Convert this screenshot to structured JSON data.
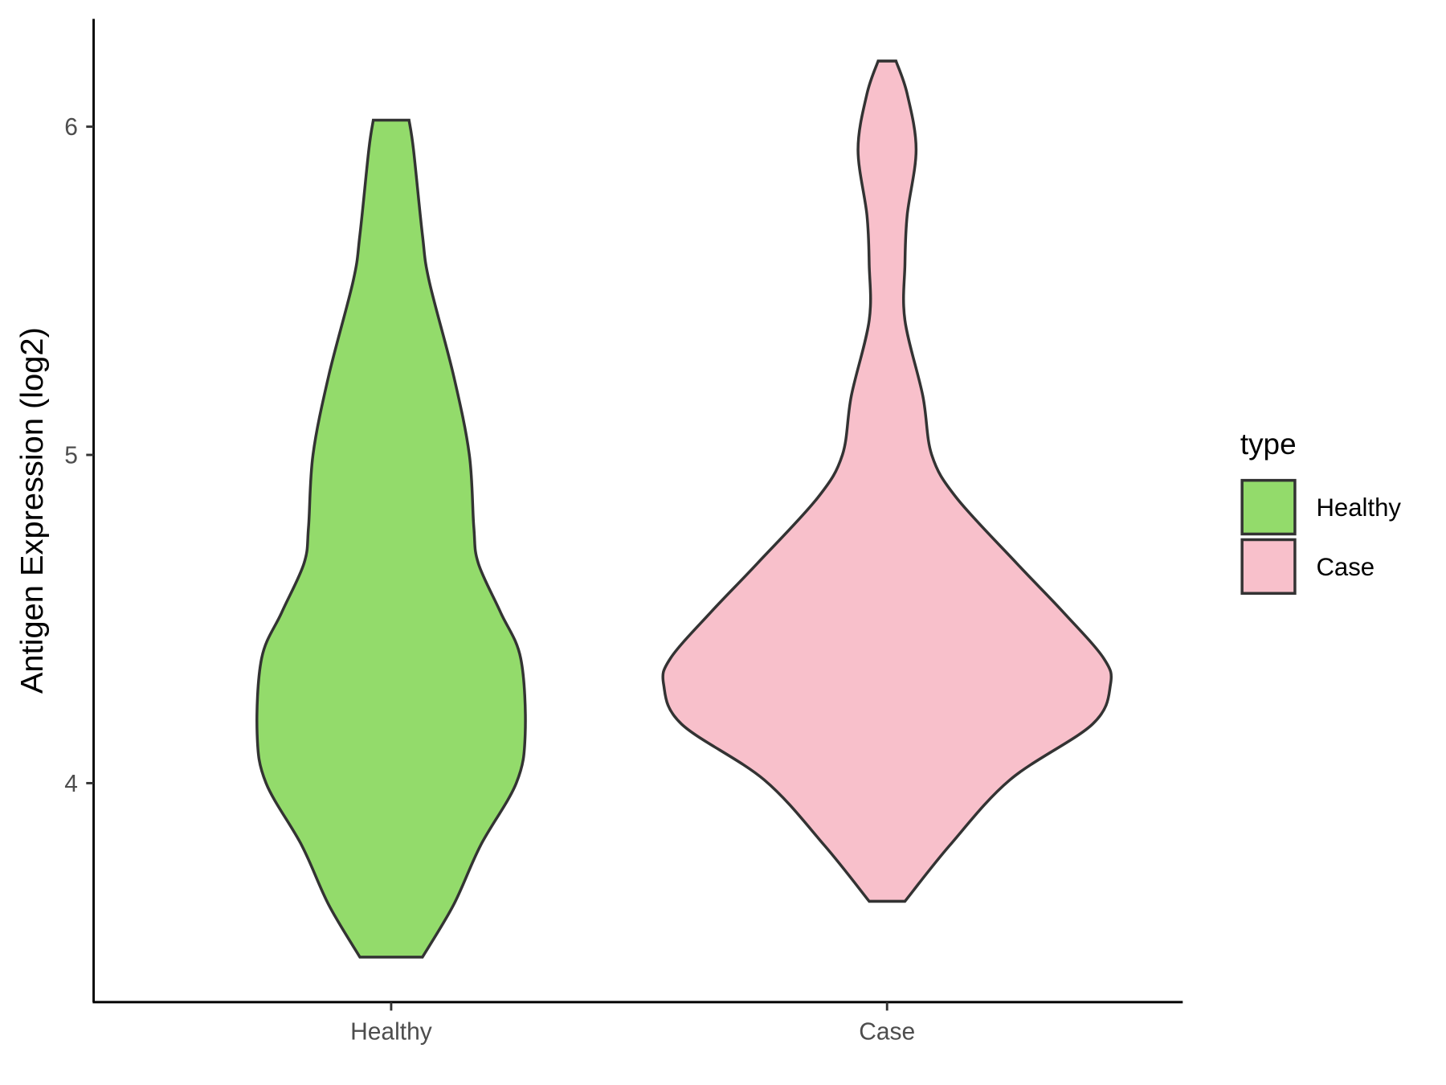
{
  "chart_data": {
    "type": "violin",
    "title": "",
    "xlabel": "",
    "ylabel": "Antigen Expression (log2)",
    "categories": [
      "Healthy",
      "Case"
    ],
    "y_ticks": [
      4,
      5,
      6
    ],
    "y_tick_labels": [
      "4",
      "5",
      "6"
    ],
    "ylim": [
      3.34,
      6.34
    ],
    "grid": false,
    "legend": {
      "title": "type",
      "placement": "right",
      "entries": [
        "Healthy",
        "Case"
      ]
    },
    "colors": {
      "Healthy": "#93DB6B",
      "Case": "#F8C0CB",
      "outline": "#333333"
    },
    "series": [
      {
        "name": "Healthy",
        "range": [
          3.47,
          6.02
        ],
        "density_profile": [
          [
            6.02,
            0.08
          ],
          [
            5.93,
            0.1
          ],
          [
            5.67,
            0.14
          ],
          [
            5.53,
            0.17
          ],
          [
            5.24,
            0.28
          ],
          [
            5.0,
            0.35
          ],
          [
            4.78,
            0.37
          ],
          [
            4.67,
            0.39
          ],
          [
            4.52,
            0.49
          ],
          [
            4.38,
            0.58
          ],
          [
            4.15,
            0.6
          ],
          [
            4.0,
            0.56
          ],
          [
            3.81,
            0.4
          ],
          [
            3.63,
            0.28
          ],
          [
            3.47,
            0.14
          ]
        ]
      },
      {
        "name": "Case",
        "range": [
          3.64,
          6.2
        ],
        "density_profile": [
          [
            6.2,
            0.04
          ],
          [
            6.1,
            0.09
          ],
          [
            5.93,
            0.13
          ],
          [
            5.73,
            0.09
          ],
          [
            5.58,
            0.08
          ],
          [
            5.41,
            0.08
          ],
          [
            5.18,
            0.16
          ],
          [
            5.0,
            0.2
          ],
          [
            4.87,
            0.31
          ],
          [
            4.67,
            0.58
          ],
          [
            4.52,
            0.79
          ],
          [
            4.38,
            0.97
          ],
          [
            4.3,
            1.0
          ],
          [
            4.18,
            0.92
          ],
          [
            4.01,
            0.55
          ],
          [
            3.81,
            0.28
          ],
          [
            3.64,
            0.08
          ]
        ]
      }
    ]
  }
}
